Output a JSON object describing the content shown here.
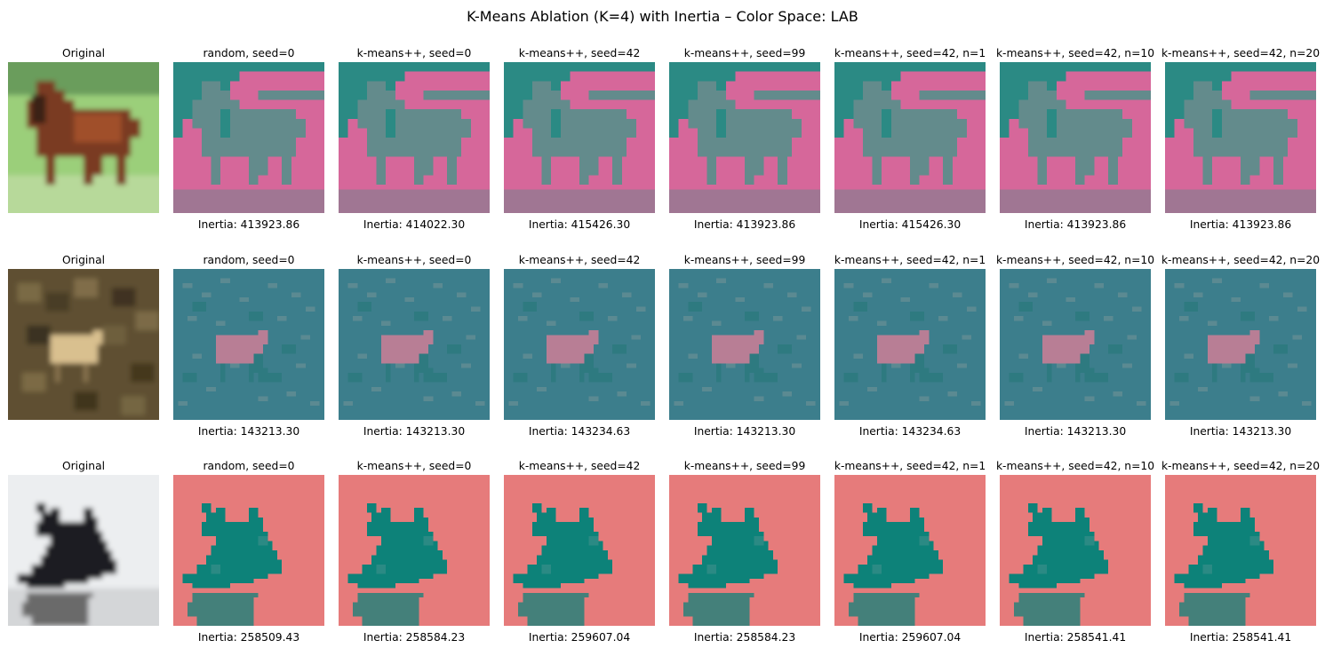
{
  "title": "K-Means Ablation (K=4) with Inertia – Color Space: LAB",
  "original_label": "Original",
  "inertia_prefix": "Inertia: ",
  "columns": [
    "random, seed=0",
    "k-means++, seed=0",
    "k-means++, seed=42",
    "k-means++, seed=99",
    "k-means++, seed=42, n=1",
    "k-means++, seed=42, n=10",
    "k-means++, seed=42, n=20"
  ],
  "rows": [
    {
      "subject": "horse",
      "inertia": [
        "413923.86",
        "414022.30",
        "415426.30",
        "413923.86",
        "415426.30",
        "413923.86",
        "413923.86"
      ],
      "palette": {
        "background": "#d6679a",
        "foreground": "#2b8a84",
        "mid": "#638b8c",
        "bottom": "#a07693"
      }
    },
    {
      "subject": "deer",
      "inertia": [
        "143213.30",
        "143213.30",
        "143234.63",
        "143213.30",
        "143234.63",
        "143213.30",
        "143213.30"
      ],
      "palette": {
        "background": "#3c7e8c",
        "foreground": "#5b8a92",
        "mid": "#2e7a80",
        "bottom": "#b87e95"
      }
    },
    {
      "subject": "airplane",
      "inertia": [
        "258509.43",
        "258584.23",
        "259607.04",
        "258584.23",
        "259607.04",
        "258541.41",
        "258541.41"
      ],
      "palette": {
        "background": "#e67b7b",
        "foreground": "#0d8279",
        "mid": "#2b8a84",
        "bottom": "#44807a"
      }
    }
  ]
}
